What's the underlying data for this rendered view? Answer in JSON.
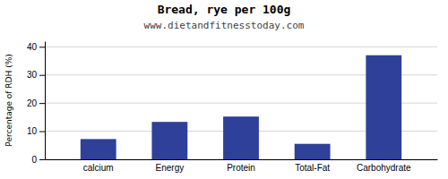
{
  "chart_data": {
    "type": "bar",
    "title": "Bread, rye per 100g",
    "subtitle": "www.dietandfitnesstoday.com",
    "categories": [
      "calcium",
      "Energy",
      "Protein",
      "Total-Fat",
      "Carbohydrate"
    ],
    "values": [
      7.2,
      13.3,
      15.2,
      5.5,
      37.0
    ],
    "color": "#2e4099",
    "ylabel": "Percentage of RDH (%)",
    "ylim": [
      0,
      42
    ],
    "yticks": [
      0,
      10,
      20,
      30,
      40
    ],
    "grid": true
  }
}
